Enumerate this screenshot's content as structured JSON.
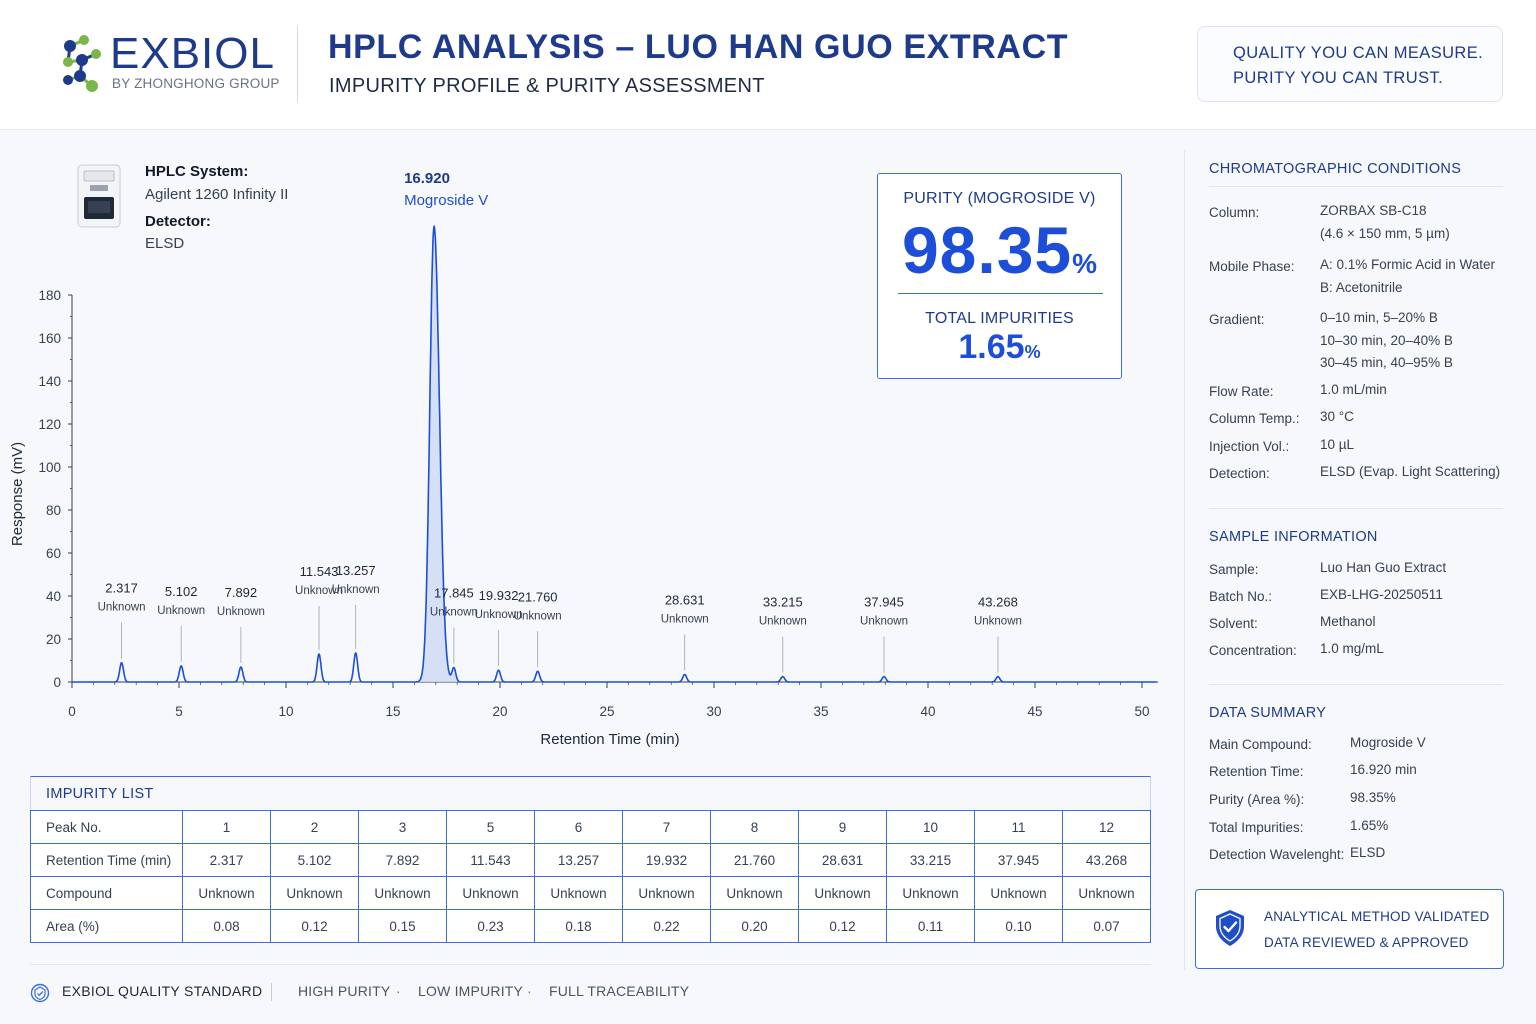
{
  "header": {
    "logo_name": "EXBIOL",
    "logo_sub": "BY ZHONGHONG GROUP",
    "title": "HPLC ANALYSIS – LUO HAN GUO EXTRACT",
    "subtitle": "IMPURITY PROFILE & PURITY ASSESSMENT",
    "tagline_1": "QUALITY YOU CAN MEASURE.",
    "tagline_2": "PURITY YOU CAN TRUST."
  },
  "system": {
    "system_label": "HPLC System:",
    "system_value": "Agilent 1260 Infinity II",
    "detector_label": "Detector:",
    "detector_value": "ELSD"
  },
  "purity": {
    "label": "PURITY (MOGROSIDE V)",
    "value": "98.35",
    "unit": "%",
    "impurities_label": "TOTAL IMPURITIES",
    "impurities_value": "1.65",
    "impurities_unit": "%"
  },
  "chart_data": {
    "type": "line",
    "xlabel": "Retention Time (min)",
    "ylabel": "Response (mV)",
    "xlim": [
      0,
      50
    ],
    "ylim": [
      0,
      180
    ],
    "x_ticks": [
      0,
      5,
      10,
      15,
      20,
      25,
      30,
      35,
      40,
      45,
      50
    ],
    "y_ticks": [
      0,
      20,
      40,
      60,
      80,
      100,
      120,
      140,
      160,
      180
    ],
    "grid": false,
    "baseline": 0,
    "peaks": [
      {
        "rt": 2.317,
        "height": 9,
        "label": "Unknown"
      },
      {
        "rt": 5.102,
        "height": 7.5,
        "label": "Unknown"
      },
      {
        "rt": 7.892,
        "height": 7,
        "label": "Unknown"
      },
      {
        "rt": 11.543,
        "height": 13,
        "label": "Unknown"
      },
      {
        "rt": 13.257,
        "height": 13.5,
        "label": "Unknown"
      },
      {
        "rt": 16.92,
        "height": 212,
        "label": "Mogroside V",
        "main": true
      },
      {
        "rt": 17.845,
        "height": 6.5,
        "label": "Unknown"
      },
      {
        "rt": 19.932,
        "height": 5.5,
        "label": "Unknown"
      },
      {
        "rt": 21.76,
        "height": 5,
        "label": "Unknown"
      },
      {
        "rt": 28.631,
        "height": 3.5,
        "label": "Unknown"
      },
      {
        "rt": 33.215,
        "height": 2.5,
        "label": "Unknown"
      },
      {
        "rt": 37.945,
        "height": 2.5,
        "label": "Unknown"
      },
      {
        "rt": 43.268,
        "height": 2.5,
        "label": "Unknown"
      }
    ],
    "colors": {
      "line": "#1d4ed8",
      "fill": "#cfdcf6",
      "axis": "#374151"
    }
  },
  "impurity_table": {
    "title": "IMPURITY LIST",
    "row_headers": [
      "Peak No.",
      "Retention Time (min)",
      "Compound",
      "Area (%)"
    ],
    "peak_no": [
      "1",
      "2",
      "3",
      "5",
      "6",
      "7",
      "8",
      "9",
      "10",
      "11",
      "12"
    ],
    "retention_time": [
      "2.317",
      "5.102",
      "7.892",
      "11.543",
      "13.257",
      "19.932",
      "21.760",
      "28.631",
      "33.215",
      "37.945",
      "43.268"
    ],
    "compound": [
      "Unknown",
      "Unknown",
      "Unknown",
      "Unknown",
      "Unknown",
      "Unknown",
      "Unknown",
      "Unknown",
      "Unknown",
      "Unknown",
      "Unknown"
    ],
    "area": [
      "0.08",
      "0.12",
      "0.15",
      "0.23",
      "0.18",
      "0.22",
      "0.20",
      "0.12",
      "0.11",
      "0.10",
      "0.07"
    ]
  },
  "footer": {
    "standard": "EXBIOL QUALITY STANDARD",
    "item_1": "HIGH PURITY",
    "item_2": "LOW IMPURITY",
    "item_3": "FULL TRACEABILITY",
    "sep": "·"
  },
  "conditions": {
    "title": "CHROMATOGRAPHIC CONDITIONS",
    "column_k": "Column:",
    "column_v1": "ZORBAX SB-C18",
    "column_v2": "(4.6 × 150 mm, 5 µm)",
    "mobile_k": "Mobile Phase:",
    "mobile_v1": "A: 0.1% Formic Acid in Water",
    "mobile_v2": "B: Acetonitrile",
    "gradient_k": "Gradient:",
    "gradient_v1": "0–10 min, 5–20% B",
    "gradient_v2": "10–30 min, 20–40% B",
    "gradient_v3": "30–45 min, 40–95% B",
    "flow_k": "Flow Rate:",
    "flow_v": "1.0 mL/min",
    "temp_k": "Column Temp.:",
    "temp_v": "30 °C",
    "inj_k": "Injection Vol.:",
    "inj_v": "10 µL",
    "det_k": "Detection:",
    "det_v": "ELSD (Evap. Light Scattering)"
  },
  "sample": {
    "title": "SAMPLE INFORMATION",
    "sample_k": "Sample:",
    "sample_v": "Luo Han Guo Extract",
    "batch_k": "Batch No.:",
    "batch_v": "EXB-LHG-20250511",
    "solvent_k": "Solvent:",
    "solvent_v": "Methanol",
    "conc_k": "Concentration:",
    "conc_v": "1.0 mg/mL"
  },
  "summary": {
    "title": "DATA SUMMARY",
    "main_k": "Main Compound:",
    "main_v": "Mogroside V",
    "rt_k": "Retention Time:",
    "rt_v": "16.920 min",
    "purity_k": "Purity (Area %):",
    "purity_v": "98.35%",
    "imp_k": "Total Impurities:",
    "imp_v": "1.65%",
    "wl_k": "Detection Wavelenght:",
    "wl_v": "ELSD"
  },
  "validation": {
    "line_1": "ANALYTICAL METHOD VALIDATED",
    "line_2": "DATA REVIEWED & APPROVED"
  }
}
